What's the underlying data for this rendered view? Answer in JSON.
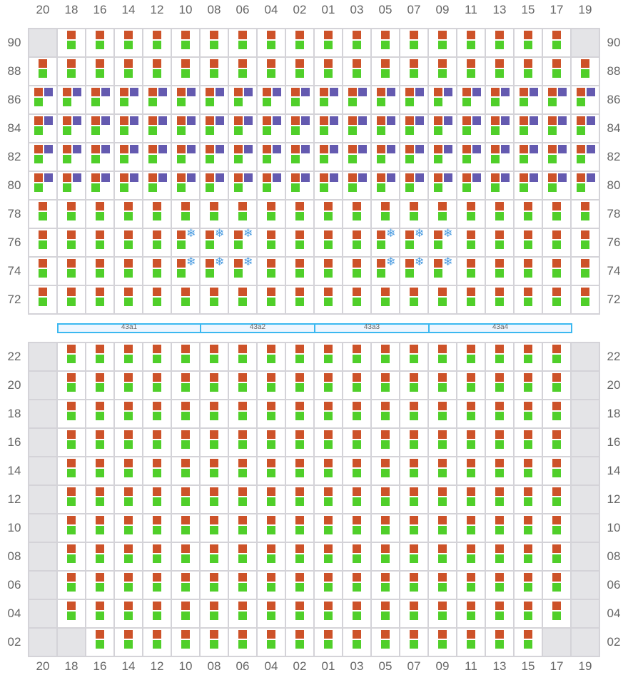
{
  "columns": [
    "20",
    "18",
    "16",
    "14",
    "12",
    "10",
    "08",
    "06",
    "04",
    "02",
    "01",
    "03",
    "05",
    "07",
    "09",
    "11",
    "13",
    "15",
    "17",
    "19"
  ],
  "top_section": {
    "rows": [
      {
        "label": "90",
        "cells": "xbbbbbbbbbbbbbbbbbbx"
      },
      {
        "label": "88",
        "cells": "bbbbbbbbbbbbbbbbbbbb"
      },
      {
        "label": "86",
        "cells": "pppppppppppppppppppp"
      },
      {
        "label": "84",
        "cells": "pppppppppppppppppppp"
      },
      {
        "label": "82",
        "cells": "pppppppppppppppppppp"
      },
      {
        "label": "80",
        "cells": "pppppppppppppppppppp"
      },
      {
        "label": "78",
        "cells": "bbbbbbbbbbbbbbbbbbbb"
      },
      {
        "label": "76",
        "cells": "bbbbbsssbbbbsssbbbbb"
      },
      {
        "label": "74",
        "cells": "bbbbbsssbbbbsssbbbbb"
      },
      {
        "label": "72",
        "cells": "bbbbbbbbbbbbbbbbbbbb"
      }
    ]
  },
  "bands": [
    {
      "label": "43a1",
      "from": "18",
      "to": "10"
    },
    {
      "label": "43a2",
      "from": "08",
      "to": "02"
    },
    {
      "label": "43a3",
      "from": "01",
      "to": "07"
    },
    {
      "label": "43a4",
      "from": "09",
      "to": "17"
    }
  ],
  "bottom_section": {
    "rows": [
      {
        "label": "22",
        "cells": "xbbbbbbbbbbbbbbbbbbx"
      },
      {
        "label": "20",
        "cells": "xbbbbbbbbbbbbbbbbbbx"
      },
      {
        "label": "18",
        "cells": "xbbbbbbbbbbbbbbbbbbx"
      },
      {
        "label": "16",
        "cells": "xbbbbbbbbbbbbbbbbbbx"
      },
      {
        "label": "14",
        "cells": "xbbbbbbbbbbbbbbbbbbx"
      },
      {
        "label": "12",
        "cells": "xbbbbbbbbbbbbbbbbbbx"
      },
      {
        "label": "10",
        "cells": "xbbbbbbbbbbbbbbbbbbx"
      },
      {
        "label": "08",
        "cells": "xbbbbbbbbbbbbbbbbbbx"
      },
      {
        "label": "06",
        "cells": "xbbbbbbbbbbbbbbbbbbx"
      },
      {
        "label": "04",
        "cells": "xbbbbbbbbbbbbbbbbbbx"
      },
      {
        "label": "02",
        "cells": "xxbbbbbbbbbbbbbbbbxx"
      }
    ]
  },
  "colors": {
    "orange": "#cd5229",
    "green": "#50cf2a",
    "purple": "#645ab0",
    "snowflake": "#4a9be0",
    "band_border": "#3bb8f0",
    "unavailable": "#e4e4e7"
  },
  "icons": {
    "snowflake": "❄"
  }
}
